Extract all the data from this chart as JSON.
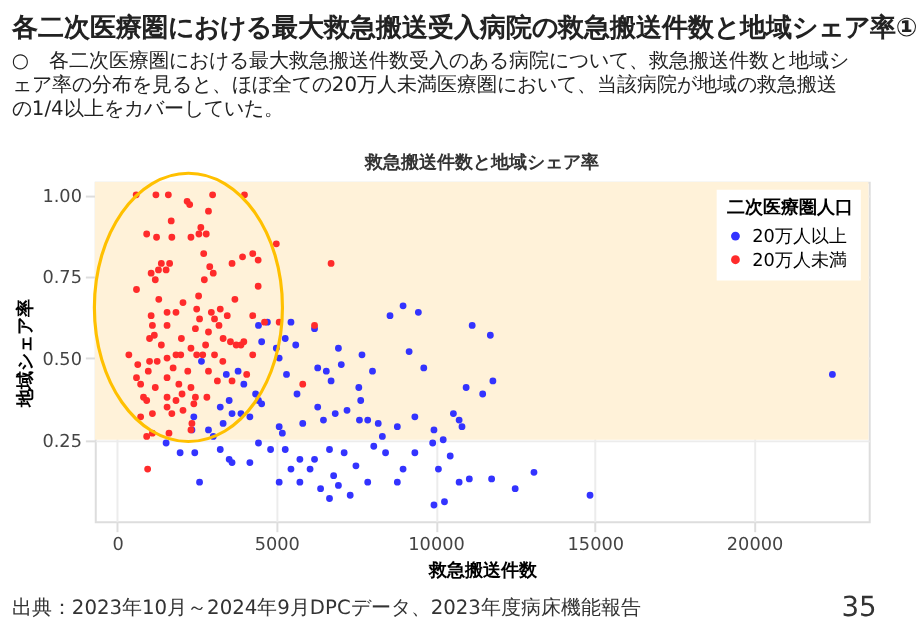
{
  "chart_data": {
    "type": "scatter",
    "title": "各二次医療圏における最大救急搬送受入病院の救急搬送件数と地域シェア率①",
    "subtitle": "○　各二次医療圏における最大救急搬送件数受入のある病院について、救急搬送件数と地域シェア率の分布を見ると、ほぼ全ての20万人未満医療圏において、当該病院が地域の救急搬送の1/4以上をカバーしていた。",
    "xlabel": "救急搬送件数",
    "ylabel": "地域シェア率",
    "legend_title": "二次医療圏人口",
    "annotations": [
      "救急搬送件数と地域シェア率",
      "出典：2023年10月～2024年9月DPCデータ、2023年度病床機能報告",
      "35"
    ],
    "xlim": [
      -700,
      23600
    ],
    "ylim": [
      0,
      1.04
    ],
    "xticks": [
      0,
      5000,
      10000,
      15000,
      20000
    ],
    "yticks": [
      0.25,
      {
        "value": 0.5,
        "label": "0.50"
      },
      0.75,
      {
        "value": 1,
        "label": "1.00"
      }
    ],
    "grid": true,
    "legend": "top right",
    "marker": "circle",
    "bands": [
      {
        "axis": "y",
        "from": 0.25,
        "to": 1.04,
        "color": "#fff2d9"
      }
    ],
    "series": [
      {
        "name": "20万人以上",
        "color": "#3333ff",
        "x": [
          2650,
          3430,
          3800,
          3980,
          4350,
          4440,
          4540,
          4440,
          4720,
          5000,
          5090,
          5280,
          5320,
          5460,
          5610,
          5650,
          6200,
          6300,
          6570,
          6720,
          7040,
          6950,
          7690,
          7590,
          7650,
          8020,
          8570,
          8980,
          9170,
          9460,
          9630,
          11150,
          11720,
          10960,
          11800,
          11480,
          10830,
          11060,
          11760,
          12500,
          13090,
          14850,
          22460,
          2410,
          2350,
          2870,
          3240,
          3520,
          3610,
          3330,
          3890,
          4170,
          4540,
          5090,
          5190,
          5830,
          6480,
          6300,
          6850,
          7220,
          7610,
          7870,
          8200,
          8800,
          9350,
          9950,
          10560,
          10740,
          10240,
          1540,
          1980,
          2440,
          3020,
          3240,
          3520,
          3610,
          4170,
          4440,
          4820,
          5280,
          5460,
          5740,
          6200,
          6060,
          6670,
          7130,
          6800,
          6950,
          7320,
          7500,
          8060,
          8330,
          8430,
          8980,
          9350,
          9910,
          10090,
          10460,
          10740,
          9950,
          10280,
          6670,
          6390,
          5740,
          5090,
          2590,
          8800,
          7870
        ],
        "values": [
          0.49,
          0.45,
          0.46,
          0.42,
          0.39,
          0.37,
          0.55,
          0.6,
          0.61,
          0.53,
          0.5,
          0.56,
          0.45,
          0.61,
          0.54,
          0.39,
          0.59,
          0.47,
          0.46,
          0.43,
          0.48,
          0.53,
          0.51,
          0.41,
          0.37,
          0.46,
          0.63,
          0.66,
          0.52,
          0.64,
          0.47,
          0.6,
          0.57,
          0.41,
          0.43,
          0.39,
          0.29,
          0.13,
          0.13,
          0.1,
          0.15,
          0.08,
          0.45,
          0.32,
          0.28,
          0.28,
          0.35,
          0.37,
          0.33,
          0.3,
          0.33,
          0.32,
          0.36,
          0.29,
          0.27,
          0.3,
          0.31,
          0.35,
          0.33,
          0.34,
          0.31,
          0.31,
          0.3,
          0.29,
          0.32,
          0.28,
          0.33,
          0.31,
          0.25,
          0.24,
          0.21,
          0.21,
          0.26,
          0.22,
          0.19,
          0.18,
          0.18,
          0.24,
          0.22,
          0.22,
          0.16,
          0.19,
          0.19,
          0.16,
          0.22,
          0.21,
          0.14,
          0.11,
          0.08,
          0.17,
          0.23,
          0.26,
          0.21,
          0.16,
          0.21,
          0.24,
          0.16,
          0.2,
          0.12,
          0.05,
          0.06,
          0.07,
          0.1,
          0.12,
          0.12,
          0.12,
          0.12,
          0.12
        ]
      },
      {
        "name": "20万人未満",
        "color": "#ff2b2b",
        "x": [
          600,
          1220,
          1610,
          3000,
          4000,
          2200,
          930,
          1240,
          1700,
          1720,
          2320,
          2570,
          2630,
          2800,
          2870,
          2280,
          2720,
          3940,
          4260,
          4430,
          5000,
          6720,
          1070,
          1300,
          1390,
          1650,
          1540,
          1200,
          2910,
          3020,
          3610,
          2740,
          610,
          1310,
          1070,
          1570,
          1850,
          2070,
          2560,
          2500,
          2960,
          3240,
          2590,
          3060,
          3460,
          3700,
          4260,
          4430,
          4630,
          5090,
          1020,
          1110,
          1570,
          1170,
          1390,
          2020,
          2460,
          2870,
          3200,
          3330,
          3560,
          3890,
          3980,
          2780,
          2320,
          370,
          650,
          1020,
          1260,
          980,
          1570,
          1850,
          2000,
          2500,
          2690,
          3060,
          3320,
          3740,
          4260,
          1760,
          610,
          740,
          1200,
          1570,
          1940,
          2220,
          2320,
          2870,
          3150,
          3610,
          4070,
          5830,
          6200,
          830,
          930,
          1570,
          1850,
          2040,
          2460,
          2820,
          740,
          1110,
          1570,
          1720,
          2070,
          2410,
          1110,
          1630,
          2320,
          2350,
          930,
          960
        ],
        "values": [
          1,
          1,
          1,
          1,
          1,
          0.98,
          0.88,
          0.87,
          0.92,
          0.87,
          0.87,
          0.88,
          0.9,
          0.88,
          0.95,
          0.97,
          0.82,
          0.81,
          0.82,
          0.8,
          0.85,
          0.79,
          0.76,
          0.77,
          0.79,
          0.79,
          0.77,
          0.74,
          0.78,
          0.76,
          0.79,
          0.74,
          0.71,
          0.68,
          0.63,
          0.64,
          0.64,
          0.67,
          0.69,
          0.65,
          0.64,
          0.65,
          0.62,
          0.62,
          0.63,
          0.68,
          0.63,
          0.72,
          0.61,
          0.61,
          0.56,
          0.6,
          0.6,
          0.57,
          0.54,
          0.56,
          0.59,
          0.58,
          0.6,
          0.56,
          0.55,
          0.54,
          0.55,
          0.54,
          0.53,
          0.51,
          0.48,
          0.49,
          0.49,
          0.46,
          0.5,
          0.51,
          0.51,
          0.51,
          0.51,
          0.51,
          0.49,
          0.54,
          0.51,
          0.47,
          0.44,
          0.42,
          0.41,
          0.44,
          0.42,
          0.46,
          0.41,
          0.46,
          0.43,
          0.43,
          0.45,
          0.42,
          0.6,
          0.38,
          0.37,
          0.38,
          0.37,
          0.39,
          0.38,
          0.38,
          0.32,
          0.33,
          0.35,
          0.33,
          0.34,
          0.36,
          0.27,
          0.27,
          0.28,
          0.3,
          0.26,
          0.16
        ]
      }
    ]
  }
}
